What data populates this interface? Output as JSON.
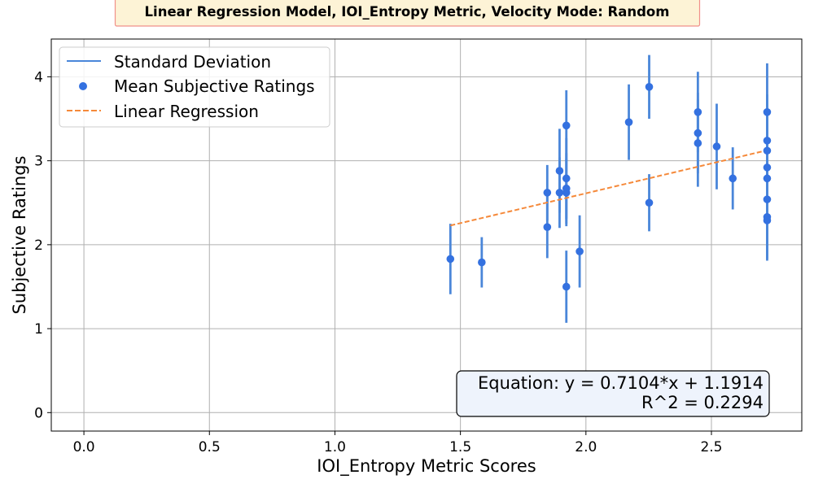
{
  "chart_data": {
    "type": "scatter",
    "title": "Linear Regression Model, IOI_Entropy Metric, Velocity Mode: Random",
    "xlabel": "IOI_Entropy Metric Scores",
    "ylabel": "Subjective Ratings",
    "xlim": [
      -0.13,
      2.86
    ],
    "ylim": [
      -0.22,
      4.45
    ],
    "xticks": [
      0.0,
      0.5,
      1.0,
      1.5,
      2.0,
      2.5
    ],
    "xtick_labels": [
      "0.0",
      "0.5",
      "1.0",
      "1.5",
      "2.0",
      "2.5"
    ],
    "yticks": [
      0,
      1,
      2,
      3,
      4
    ],
    "ytick_labels": [
      "0",
      "1",
      "2",
      "3",
      "4"
    ],
    "grid": true,
    "legend_position": "top-left",
    "legend": [
      {
        "label": "Standard Deviation",
        "kind": "line"
      },
      {
        "label": "Mean Subjective Ratings",
        "kind": "marker"
      },
      {
        "label": "Linear Regression",
        "kind": "dashed-line"
      }
    ],
    "colors": {
      "points": "#3471e0",
      "errorbars": "#4a86d9",
      "regression": "#f5893a",
      "title_bg": "#fdf3d6",
      "title_border": "#f0908a",
      "annotation_bg": "#eef3fc",
      "grid": "#b0b0b0"
    },
    "series": [
      {
        "name": "Mean Subjective Ratings",
        "points": [
          {
            "x": 1.46,
            "y": 1.83,
            "sd": 0.42
          },
          {
            "x": 1.585,
            "y": 1.79,
            "sd": 0.3
          },
          {
            "x": 1.846,
            "y": 2.62,
            "sd": 0.33
          },
          {
            "x": 1.846,
            "y": 2.21,
            "sd": 0.37
          },
          {
            "x": 1.895,
            "y": 2.88,
            "sd": 0.5
          },
          {
            "x": 1.895,
            "y": 2.62,
            "sd": 0.42
          },
          {
            "x": 1.922,
            "y": 3.42,
            "sd": 0.42
          },
          {
            "x": 1.922,
            "y": 2.79,
            "sd": 0.48
          },
          {
            "x": 1.922,
            "y": 2.67,
            "sd": 0.42
          },
          {
            "x": 1.922,
            "y": 2.62,
            "sd": 0.4
          },
          {
            "x": 1.922,
            "y": 1.5,
            "sd": 0.43
          },
          {
            "x": 1.975,
            "y": 1.92,
            "sd": 0.43
          },
          {
            "x": 2.171,
            "y": 3.46,
            "sd": 0.45
          },
          {
            "x": 2.252,
            "y": 3.88,
            "sd": 0.38
          },
          {
            "x": 2.252,
            "y": 2.5,
            "sd": 0.34
          },
          {
            "x": 2.446,
            "y": 3.58,
            "sd": 0.48
          },
          {
            "x": 2.446,
            "y": 3.33,
            "sd": 0.48
          },
          {
            "x": 2.446,
            "y": 3.21,
            "sd": 0.52
          },
          {
            "x": 2.521,
            "y": 3.17,
            "sd": 0.51
          },
          {
            "x": 2.585,
            "y": 2.79,
            "sd": 0.37
          },
          {
            "x": 2.722,
            "y": 3.58,
            "sd": 0.58
          },
          {
            "x": 2.722,
            "y": 3.24,
            "sd": 0.55
          },
          {
            "x": 2.722,
            "y": 3.12,
            "sd": 0.52
          },
          {
            "x": 2.722,
            "y": 2.92,
            "sd": 0.52
          },
          {
            "x": 2.722,
            "y": 2.79,
            "sd": 0.52
          },
          {
            "x": 2.722,
            "y": 2.54,
            "sd": 0.52
          },
          {
            "x": 2.722,
            "y": 2.33,
            "sd": 0.5
          },
          {
            "x": 2.722,
            "y": 2.29,
            "sd": 0.48
          }
        ]
      }
    ],
    "regression": {
      "name": "Linear Regression",
      "slope": 0.7104,
      "intercept": 1.1914,
      "x_range": [
        1.46,
        2.722
      ]
    },
    "annotation": {
      "equation": "Equation: y = 0.7104*x + 1.1914",
      "r2": "R^2 = 0.2294"
    }
  }
}
